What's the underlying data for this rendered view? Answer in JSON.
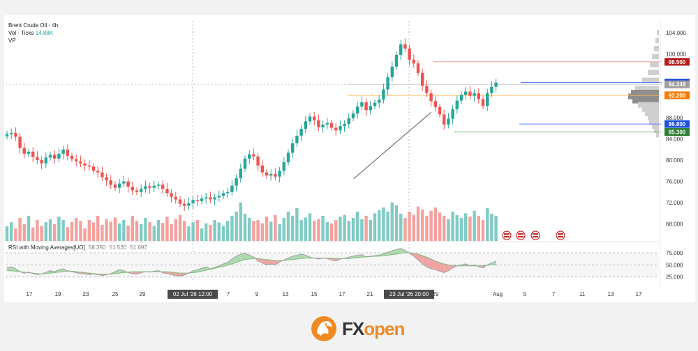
{
  "legend": {
    "symbol": "Brent Crude Oil · 4h",
    "vol_label": "Vol · Ticks",
    "vol_value": "14.88K",
    "vp_label": "VP"
  },
  "rsi_legend": {
    "name": "RSI with Moving Averages[UO]",
    "v1": "58.350",
    "v2": "51.520",
    "v3": "51.697"
  },
  "logo": {
    "text_fx": "FX",
    "text_open": "open"
  },
  "colors": {
    "up": "#26a69a",
    "down": "#ef5350",
    "vol_up": "#80cbc4",
    "vol_down": "#f4a19e",
    "red_badge": "#b71c1c",
    "blue_badge": "#1e4fd8",
    "orange_badge": "#f57c00",
    "green_badge": "#2e7d32",
    "gray_badge": "#9e9e9e",
    "rsi_line": "#9e9e9e",
    "rsi_fill_up": "#a5d6a7",
    "rsi_fill_down": "#ef9a9a"
  },
  "chart_data": [
    {
      "type": "candlestick",
      "title": "Brent Crude Oil · 4h",
      "y_axis_ticks": [
        "104.000",
        "100.000",
        "88.000",
        "84.000",
        "80.000",
        "76.000",
        "72.000",
        "68.000"
      ],
      "y_axis_tick_values": [
        104,
        100,
        88,
        84,
        80,
        76,
        72,
        68
      ],
      "x_axis_ticks": [
        "17",
        "19",
        "23",
        "25",
        "29",
        "7",
        "9",
        "13",
        "15",
        "17",
        "21",
        "29",
        "Aug",
        "5",
        "7",
        "11",
        "13",
        "17"
      ],
      "x_axis_highlights": [
        "02 Jul '26  12:00",
        "23 Jul '26  20:00"
      ],
      "ylim": [
        64.8,
        106.2
      ],
      "price_levels": [
        {
          "label": "98.500",
          "value": 98.5,
          "color": "#b71c1c",
          "line": "#ef9a9a"
        },
        {
          "label": "94.600",
          "value": 94.6,
          "color": "#1e4fd8",
          "line": "#5c7cfa"
        },
        {
          "label": "94.248",
          "value": 94.248,
          "color": "#9e9e9e",
          "line": "#cfcfcf"
        },
        {
          "label": "92.200",
          "value": 92.2,
          "color": "#f57c00",
          "line": "#ffb74d"
        },
        {
          "label": "86.800",
          "value": 86.8,
          "color": "#1e4fd8",
          "line": "#5c7cfa"
        },
        {
          "label": "85.300",
          "value": 85.3,
          "color": "#2e7d32",
          "line": "#66bb6a"
        }
      ],
      "trendline": {
        "from": [
          83,
          76.5
        ],
        "to": [
          135,
          97.5
        ]
      },
      "closes": [
        84.9,
        85.1,
        84.4,
        82.3,
        81.2,
        81.6,
        80.6,
        80.0,
        79.4,
        80.5,
        81.0,
        80.3,
        81.2,
        82.0,
        80.8,
        80.2,
        79.8,
        79.4,
        79.0,
        78.8,
        78.0,
        77.7,
        76.8,
        76.2,
        75.4,
        74.8,
        75.6,
        76.0,
        75.0,
        74.3,
        74.0,
        74.6,
        75.1,
        74.8,
        75.2,
        75.4,
        74.6,
        73.8,
        73.1,
        72.6,
        71.8,
        71.4,
        71.9,
        72.5,
        72.3,
        72.8,
        73.0,
        72.6,
        73.0,
        73.3,
        73.8,
        74.0,
        75.2,
        76.6,
        78.4,
        80.3,
        81.1,
        80.7,
        79.0,
        77.7,
        77.1,
        77.4,
        76.9,
        78.0,
        79.6,
        81.4,
        83.2,
        84.6,
        85.9,
        87.3,
        88.2,
        87.5,
        86.2,
        86.7,
        87.0,
        86.1,
        85.6,
        86.4,
        86.8,
        87.9,
        88.8,
        90.1,
        90.9,
        89.4,
        90.2,
        90.8,
        91.4,
        93.3,
        95.6,
        97.6,
        99.8,
        101.8,
        101.0,
        98.9,
        98.2,
        96.4,
        94.0,
        92.6,
        91.1,
        90.0,
        88.6,
        86.7,
        87.8,
        89.6,
        91.2,
        92.3,
        92.9,
        92.1,
        92.6,
        91.5,
        90.2,
        92.6,
        93.8,
        94.6
      ],
      "volumes": [
        0.35,
        0.45,
        0.3,
        0.55,
        0.4,
        0.6,
        0.32,
        0.5,
        0.36,
        0.45,
        0.52,
        0.4,
        0.58,
        0.5,
        0.33,
        0.45,
        0.55,
        0.48,
        0.3,
        0.5,
        0.44,
        0.6,
        0.38,
        0.52,
        0.46,
        0.56,
        0.42,
        0.5,
        0.37,
        0.6,
        0.48,
        0.4,
        0.55,
        0.45,
        0.36,
        0.5,
        0.43,
        0.58,
        0.4,
        0.52,
        0.62,
        0.48,
        0.35,
        0.45,
        0.5,
        0.3,
        0.42,
        0.38,
        0.5,
        0.44,
        0.36,
        0.48,
        0.6,
        0.7,
        0.92,
        0.65,
        0.55,
        0.48,
        0.5,
        0.42,
        0.58,
        0.46,
        0.62,
        0.4,
        0.55,
        0.7,
        0.6,
        0.78,
        0.5,
        0.56,
        0.66,
        0.48,
        0.52,
        0.6,
        0.45,
        0.42,
        0.5,
        0.58,
        0.62,
        0.48,
        0.55,
        0.7,
        0.52,
        0.6,
        0.5,
        0.66,
        0.74,
        0.8,
        0.7,
        0.92,
        0.85,
        0.65,
        0.55,
        0.7,
        0.62,
        0.82,
        0.75,
        0.6,
        0.72,
        0.8,
        0.68,
        0.6,
        0.52,
        0.7,
        0.62,
        0.55,
        0.66,
        0.58,
        0.72,
        0.6,
        0.5,
        0.78,
        0.65,
        0.6
      ]
    },
    {
      "type": "line",
      "title": "RSI with Moving Averages[UO]",
      "y_axis_ticks": [
        "75.000",
        "50.000",
        "25.000"
      ],
      "y_axis_tick_values": [
        75,
        50,
        25
      ],
      "ylim": [
        16,
        85
      ],
      "rsi": [
        44,
        46,
        42,
        36,
        33,
        35,
        32,
        30,
        31,
        35,
        38,
        36,
        40,
        42,
        38,
        36,
        34,
        32,
        31,
        30,
        31,
        30,
        28,
        30,
        32,
        36,
        40,
        38,
        34,
        32,
        31,
        34,
        36,
        35,
        37,
        38,
        34,
        32,
        30,
        28,
        27,
        29,
        33,
        38,
        40,
        43,
        46,
        42,
        45,
        48,
        52,
        55,
        62,
        68,
        72,
        74,
        70,
        66,
        58,
        54,
        50,
        52,
        50,
        56,
        60,
        64,
        68,
        70,
        72,
        70,
        66,
        64,
        62,
        64,
        63,
        60,
        58,
        62,
        64,
        66,
        68,
        70,
        71,
        66,
        68,
        69,
        70,
        73,
        76,
        79,
        82,
        84,
        80,
        74,
        68,
        60,
        52,
        46,
        42,
        40,
        37,
        34,
        38,
        44,
        48,
        50,
        52,
        48,
        50,
        46,
        44,
        50,
        54,
        58
      ],
      "ma": [
        38,
        38,
        37,
        36,
        35,
        34,
        33,
        32,
        31,
        32,
        33,
        34,
        35,
        36,
        37,
        37,
        36,
        35,
        34,
        33,
        32,
        31,
        31,
        31,
        31,
        32,
        33,
        34,
        35,
        36,
        36,
        36,
        36,
        36,
        36,
        36,
        36,
        36,
        35,
        34,
        33,
        33,
        33,
        34,
        35,
        37,
        39,
        41,
        43,
        45,
        47,
        49,
        52,
        55,
        58,
        61,
        62,
        63,
        63,
        62,
        61,
        60,
        59,
        59,
        59,
        60,
        61,
        62,
        63,
        64,
        64,
        64,
        64,
        64,
        64,
        64,
        63,
        63,
        63,
        63,
        64,
        65,
        66,
        67,
        67,
        68,
        68,
        69,
        70,
        71,
        72,
        74,
        75,
        75,
        74,
        72,
        69,
        66,
        62,
        58,
        55,
        52,
        50,
        49,
        48,
        48,
        48,
        48,
        48,
        48,
        48,
        49,
        50,
        51
      ]
    }
  ]
}
